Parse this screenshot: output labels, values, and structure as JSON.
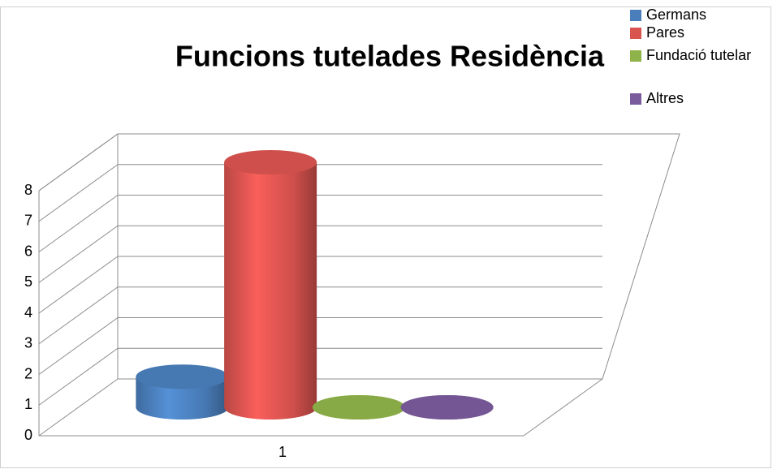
{
  "chart_data": {
    "type": "cylinder3d",
    "title": "Funcions tutelades Residència",
    "categories": [
      "1"
    ],
    "series": [
      {
        "name": "Germans",
        "color": "#4a7ebb",
        "values": [
          1
        ]
      },
      {
        "name": "Pares",
        "color": "#d9534f",
        "values": [
          8
        ]
      },
      {
        "name": "Fundació tutelar",
        "color": "#8fb34a",
        "values": [
          0
        ]
      },
      {
        "name": "Altres",
        "color": "#7a5b9c",
        "values": [
          0
        ]
      }
    ],
    "ylim": [
      0,
      8
    ],
    "yticks": [
      0,
      1,
      2,
      3,
      4,
      5,
      6,
      7,
      8
    ],
    "grid": true,
    "legend": "top-right"
  }
}
